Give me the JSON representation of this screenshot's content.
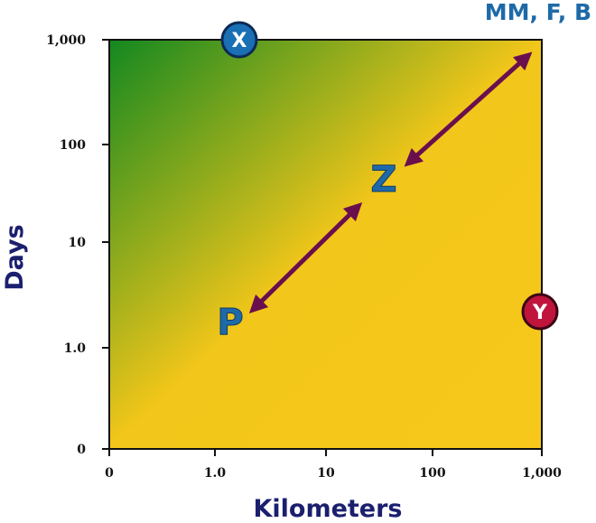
{
  "header": {
    "title": "MM, F, B"
  },
  "axes": {
    "x_label": "Kilometers",
    "y_label": "Days",
    "x_ticks": [
      "0",
      "1.0",
      "10",
      "100",
      "1,000"
    ],
    "y_ticks": [
      "0",
      "1.0",
      "10",
      "100",
      "1,000"
    ]
  },
  "markers": [
    {
      "label": "X"
    },
    {
      "label": "Y"
    },
    {
      "label": "Z"
    },
    {
      "label": "P"
    }
  ]
}
